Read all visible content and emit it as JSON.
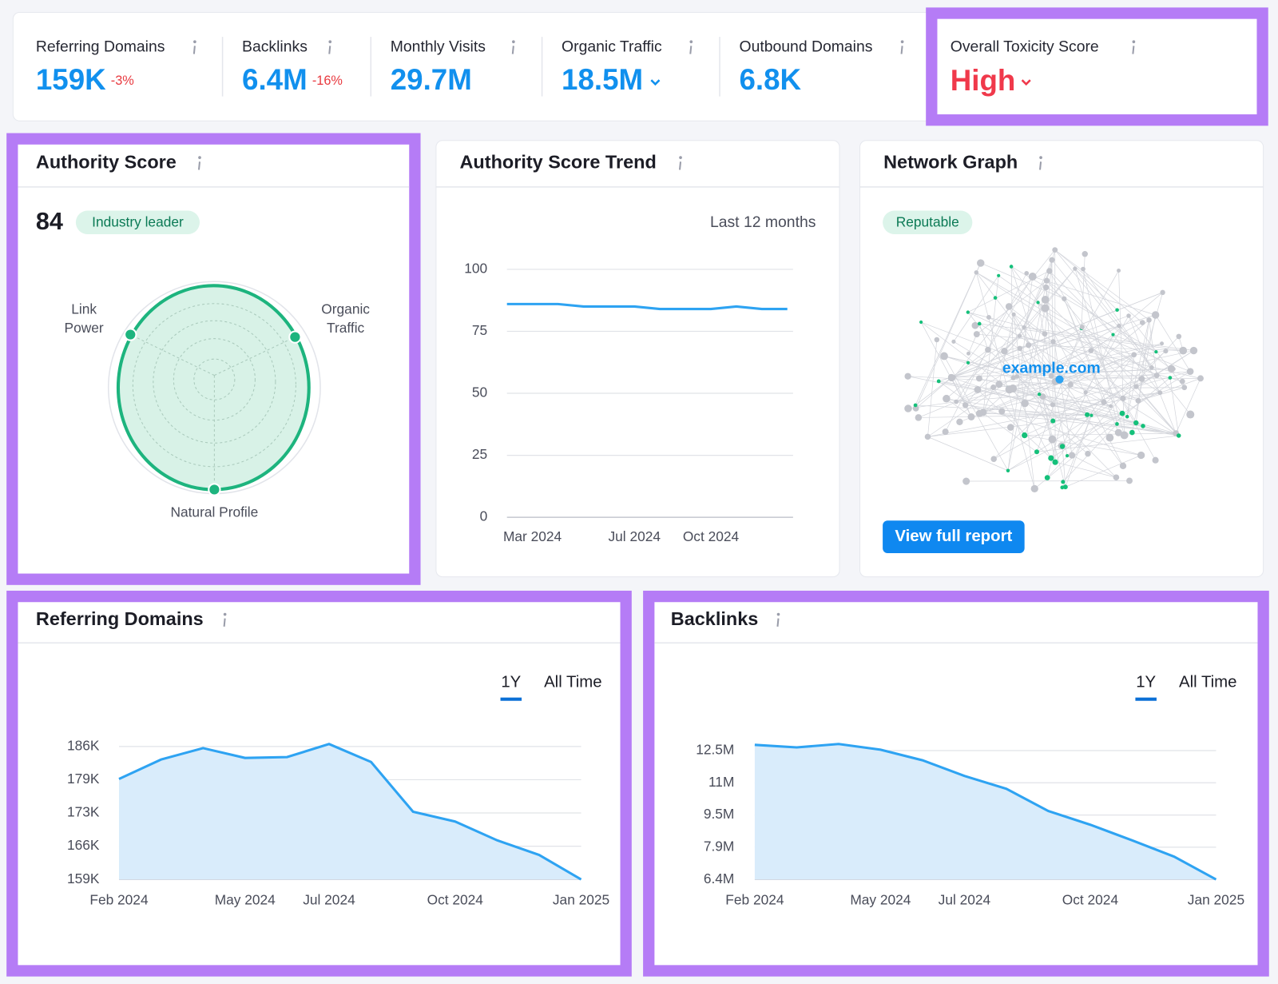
{
  "metrics": [
    {
      "label": "Referring Domains",
      "value": "159K",
      "change": "-3%"
    },
    {
      "label": "Backlinks",
      "value": "6.4M",
      "change": "-16%"
    },
    {
      "label": "Monthly Visits",
      "value": "29.7M"
    },
    {
      "label": "Organic Traffic",
      "value": "18.5M"
    },
    {
      "label": "Outbound Domains",
      "value": "6.8K"
    }
  ],
  "toxicity": {
    "label": "Overall Toxicity Score",
    "value": "High"
  },
  "authority_score": {
    "title": "Authority Score",
    "score": 84,
    "badge": "Industry leader",
    "axes": [
      "Link",
      "Power",
      "Organic",
      "Traffic",
      "Natural Profile"
    ]
  },
  "network_graph": {
    "title": "Network Graph",
    "badge": "Reputable",
    "center_label": "example.com",
    "button": "View full report"
  },
  "chart_data": [
    {
      "type": "line",
      "title": "Authority Score Trend",
      "subtitle": "Last 12 months",
      "categories": [
        null,
        "Mar 2024",
        null,
        null,
        null,
        "Jul 2024",
        null,
        null,
        "Oct 2024",
        null,
        null,
        null
      ],
      "values": [
        86,
        86,
        86,
        85,
        85,
        85,
        84,
        84,
        84,
        85,
        84,
        84
      ],
      "color": "#2ea3f2",
      "ylim": [
        0,
        100
      ],
      "yticks": [
        0,
        25,
        50,
        75,
        100
      ],
      "grid": true
    },
    {
      "type": "area",
      "title": "Referring Domains",
      "range_options": [
        "1Y",
        "All Time"
      ],
      "selected_range_index": 0,
      "categories": [
        "Feb 2024",
        null,
        null,
        "May 2024",
        null,
        "Jul 2024",
        null,
        null,
        "Oct 2024",
        null,
        null,
        "Jan 2025"
      ],
      "values": [
        179400,
        183350,
        185670,
        183680,
        183850,
        186500,
        182850,
        172750,
        170760,
        166950,
        163970,
        159000
      ],
      "color": "#2ea3f2",
      "ylim": [
        159000,
        186000
      ],
      "yticks": [
        {
          "value": 159000,
          "label": "159K"
        },
        {
          "value": 165750,
          "label": "166K"
        },
        {
          "value": 172500,
          "label": "173K"
        },
        {
          "value": 179250,
          "label": "179K"
        },
        {
          "value": 186000,
          "label": "186K"
        }
      ],
      "grid": true
    },
    {
      "type": "area",
      "title": "Backlinks",
      "range_options": [
        "1Y",
        "All Time"
      ],
      "selected_range_index": 0,
      "categories": [
        "Feb 2024",
        null,
        null,
        "May 2024",
        null,
        "Jul 2024",
        null,
        null,
        "Oct 2024",
        null,
        null,
        "Jan 2025"
      ],
      "values": [
        12770000,
        12650000,
        12810000,
        12540000,
        12040000,
        11300000,
        10690000,
        9640000,
        8990000,
        8250000,
        7480000,
        6400000
      ],
      "color": "#2ea3f2",
      "ylim": [
        6400000,
        12500000
      ],
      "yticks": [
        {
          "value": 6400000,
          "label": "6.4M"
        },
        {
          "value": 7925000,
          "label": "7.9M"
        },
        {
          "value": 9450000,
          "label": "9.5M"
        },
        {
          "value": 10975000,
          "label": "11M"
        },
        {
          "value": 12500000,
          "label": "12.5M"
        }
      ],
      "grid": true
    }
  ]
}
